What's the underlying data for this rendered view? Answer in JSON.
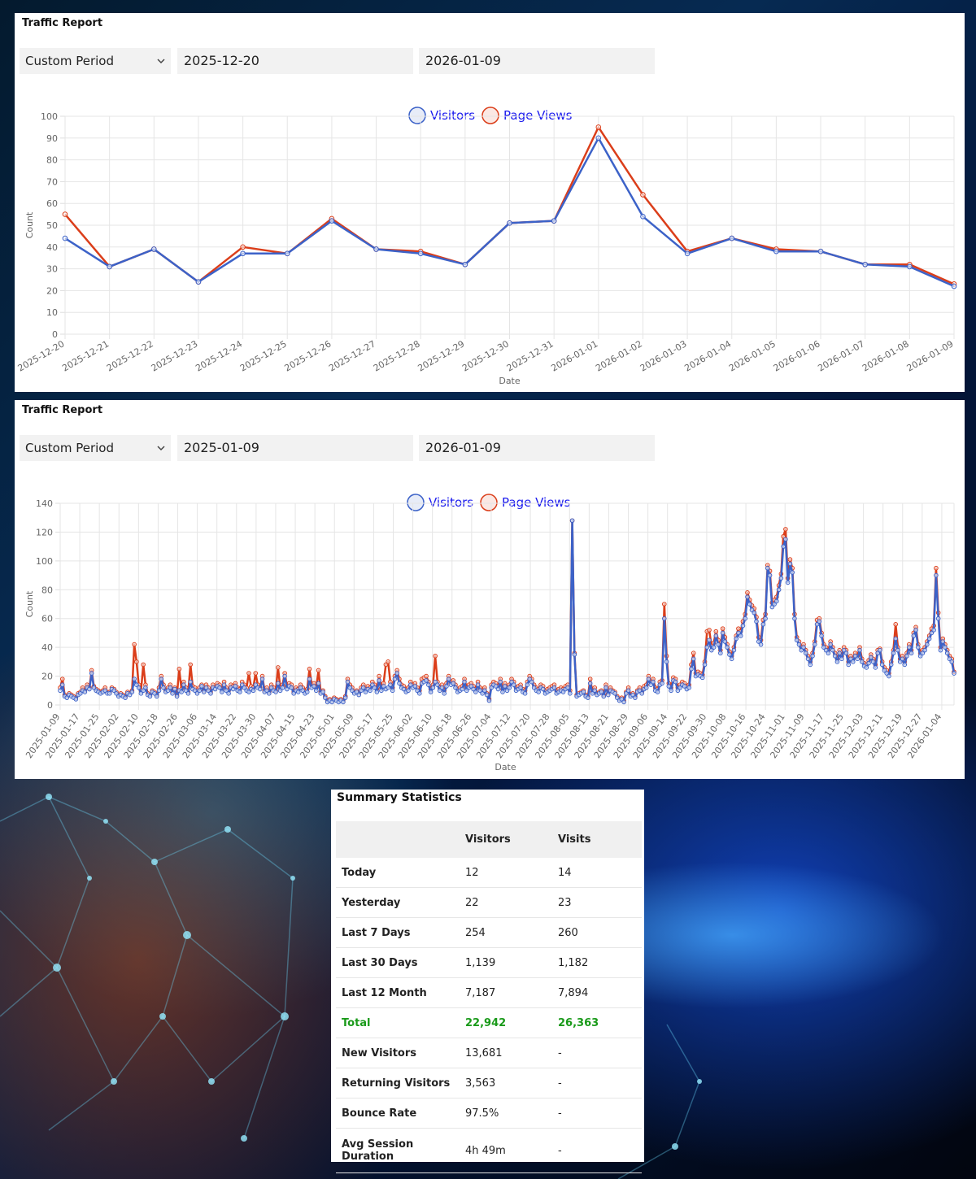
{
  "colors": {
    "visitors": "#3c62c8",
    "page_views": "#db3e1a",
    "legend_text": "#1a1aee",
    "total_row": "#1a9a1a"
  },
  "panels": [
    {
      "title": "Traffic Report",
      "period_select": "Custom Period",
      "start_date": "2025-12-20",
      "end_date": "2026-01-09"
    },
    {
      "title": "Traffic Report",
      "period_select": "Custom Period",
      "start_date": "2025-01-09",
      "end_date": "2026-01-09"
    }
  ],
  "chart_data": [
    {
      "type": "line",
      "xlabel": "Date",
      "ylabel": "Count",
      "ylim": [
        0,
        100
      ],
      "yticks": [
        0,
        10,
        20,
        30,
        40,
        50,
        60,
        70,
        80,
        90,
        100
      ],
      "grid": true,
      "legend_position": "top",
      "x": [
        "2025-12-20",
        "2025-12-21",
        "2025-12-22",
        "2025-12-23",
        "2025-12-24",
        "2025-12-25",
        "2025-12-26",
        "2025-12-27",
        "2025-12-28",
        "2025-12-29",
        "2025-12-30",
        "2025-12-31",
        "2026-01-01",
        "2026-01-02",
        "2026-01-03",
        "2026-01-04",
        "2026-01-05",
        "2026-01-06",
        "2026-01-07",
        "2026-01-08",
        "2026-01-09"
      ],
      "series": [
        {
          "name": "Visitors",
          "values": [
            44,
            31,
            39,
            24,
            37,
            37,
            52,
            39,
            37,
            32,
            51,
            52,
            90,
            54,
            37,
            44,
            38,
            38,
            32,
            31,
            22
          ]
        },
        {
          "name": "Page Views",
          "values": [
            55,
            31,
            39,
            24,
            40,
            37,
            53,
            39,
            38,
            32,
            51,
            52,
            95,
            64,
            38,
            44,
            39,
            38,
            32,
            32,
            23
          ]
        }
      ]
    },
    {
      "type": "line",
      "xlabel": "Date",
      "ylabel": "Count",
      "ylim": [
        0,
        140
      ],
      "yticks": [
        0,
        20,
        40,
        60,
        80,
        100,
        120,
        140
      ],
      "grid": true,
      "legend_position": "top",
      "x_start": "2025-01-09",
      "x_end": "2026-01-09",
      "xtick_labels": [
        "2025-01-09",
        "2025-01-17",
        "2025-01-25",
        "2025-02-02",
        "2025-02-10",
        "2025-02-18",
        "2025-02-26",
        "2025-03-06",
        "2025-03-14",
        "2025-03-22",
        "2025-03-30",
        "2025-04-07",
        "2025-04-15",
        "2025-04-23",
        "2025-05-01",
        "2025-05-09",
        "2025-05-17",
        "2025-05-25",
        "2025-06-02",
        "2025-06-10",
        "2025-06-18",
        "2025-06-26",
        "2025-07-04",
        "2025-07-12",
        "2025-07-20",
        "2025-07-28",
        "2025-08-05",
        "2025-08-13",
        "2025-08-21",
        "2025-08-29",
        "2025-09-06",
        "2025-09-14",
        "2025-09-22",
        "2025-09-30",
        "2025-10-08",
        "2025-10-16",
        "2025-10-24",
        "2025-11-01",
        "2025-11-09",
        "2025-11-17",
        "2025-11-25",
        "2025-12-03",
        "2025-12-11",
        "2025-12-19",
        "2025-12-27",
        "2026-01-04"
      ],
      "series": [
        {
          "name": "Visitors",
          "values": [
            10,
            14,
            6,
            5,
            7,
            6,
            5,
            4,
            7,
            8,
            10,
            9,
            12,
            11,
            22,
            12,
            10,
            9,
            8,
            9,
            10,
            8,
            8,
            11,
            10,
            8,
            6,
            7,
            6,
            5,
            8,
            7,
            9,
            18,
            14,
            12,
            8,
            10,
            12,
            7,
            6,
            9,
            8,
            6,
            10,
            18,
            12,
            9,
            10,
            12,
            8,
            11,
            6,
            10,
            9,
            14,
            10,
            8,
            16,
            11,
            10,
            8,
            10,
            13,
            9,
            12,
            10,
            8,
            12,
            11,
            13,
            12,
            9,
            14,
            10,
            8,
            12,
            11,
            13,
            10,
            9,
            14,
            12,
            10,
            9,
            11,
            10,
            14,
            12,
            11,
            18,
            9,
            10,
            8,
            12,
            10,
            9,
            15,
            10,
            12,
            20,
            11,
            13,
            12,
            8,
            10,
            9,
            12,
            10,
            8,
            9,
            18,
            12,
            13,
            10,
            15,
            8,
            9,
            5,
            2,
            3,
            2,
            4,
            3,
            2,
            3,
            2,
            5,
            16,
            12,
            10,
            8,
            9,
            7,
            10,
            12,
            9,
            11,
            10,
            14,
            12,
            9,
            17,
            10,
            13,
            11,
            12,
            14,
            10,
            18,
            22,
            15,
            12,
            11,
            9,
            10,
            14,
            12,
            13,
            10,
            8,
            15,
            16,
            17,
            14,
            9,
            12,
            16,
            14,
            10,
            12,
            8,
            13,
            18,
            14,
            15,
            12,
            9,
            10,
            11,
            16,
            10,
            12,
            13,
            11,
            9,
            14,
            10,
            8,
            10,
            7,
            3,
            12,
            14,
            13,
            11,
            16,
            9,
            13,
            10,
            12,
            16,
            14,
            10,
            11,
            12,
            9,
            8,
            14,
            18,
            16,
            12,
            10,
            9,
            12,
            11,
            8,
            9,
            10,
            11,
            12,
            8,
            9,
            10,
            9,
            11,
            12,
            8,
            128,
            35,
            6,
            7,
            8,
            9,
            6,
            5,
            15,
            8,
            10,
            7,
            8,
            9,
            6,
            12,
            7,
            10,
            9,
            8,
            5,
            3,
            4,
            2,
            8,
            10,
            6,
            7,
            5,
            9,
            10,
            8,
            11,
            12,
            18,
            14,
            16,
            10,
            9,
            14,
            15,
            60,
            30,
            13,
            10,
            17,
            16,
            10,
            12,
            14,
            13,
            11,
            12,
            25,
            32,
            20,
            21,
            20,
            19,
            28,
            40,
            45,
            38,
            40,
            48,
            42,
            36,
            50,
            44,
            40,
            35,
            32,
            38,
            46,
            50,
            48,
            55,
            60,
            75,
            70,
            66,
            64,
            58,
            44,
            42,
            56,
            60,
            95,
            90,
            68,
            70,
            72,
            80,
            88,
            110,
            115,
            85,
            98,
            92,
            60,
            45,
            42,
            38,
            40,
            36,
            32,
            28,
            34,
            42,
            56,
            58,
            48,
            40,
            38,
            36,
            42,
            38,
            34,
            30,
            36,
            32,
            38,
            36,
            28,
            32,
            30,
            34,
            32,
            38,
            30,
            27,
            26,
            29,
            33,
            30,
            26,
            36,
            38,
            28,
            24,
            22,
            20,
            28,
            36,
            46,
            38,
            30,
            32,
            28,
            34,
            40,
            36,
            48,
            52,
            40,
            34,
            36,
            38,
            42,
            46,
            50,
            52,
            90,
            60,
            38,
            44,
            40,
            36,
            32,
            30,
            22
          ]
        },
        {
          "name": "Page Views",
          "values": [
            12,
            18,
            7,
            6,
            8,
            7,
            6,
            5,
            8,
            9,
            12,
            10,
            14,
            12,
            24,
            13,
            11,
            10,
            9,
            10,
            12,
            9,
            9,
            12,
            11,
            9,
            7,
            8,
            7,
            6,
            9,
            8,
            10,
            42,
            30,
            14,
            10,
            28,
            14,
            8,
            7,
            10,
            9,
            7,
            12,
            20,
            14,
            10,
            12,
            14,
            9,
            12,
            7,
            25,
            11,
            16,
            12,
            9,
            28,
            13,
            12,
            9,
            12,
            14,
            10,
            14,
            12,
            9,
            14,
            12,
            15,
            14,
            11,
            16,
            12,
            10,
            14,
            13,
            15,
            12,
            11,
            16,
            14,
            12,
            22,
            13,
            12,
            22,
            14,
            12,
            20,
            10,
            12,
            9,
            14,
            12,
            10,
            26,
            12,
            14,
            22,
            13,
            15,
            14,
            9,
            12,
            11,
            14,
            12,
            10,
            11,
            25,
            14,
            15,
            12,
            24,
            9,
            10,
            6,
            3,
            4,
            3,
            5,
            4,
            3,
            4,
            3,
            6,
            18,
            14,
            12,
            9,
            10,
            8,
            12,
            14,
            11,
            13,
            12,
            16,
            14,
            11,
            20,
            12,
            15,
            28,
            30,
            16,
            12,
            20,
            24,
            18,
            14,
            13,
            11,
            12,
            16,
            14,
            15,
            12,
            10,
            18,
            19,
            20,
            16,
            11,
            14,
            34,
            16,
            12,
            14,
            10,
            15,
            20,
            16,
            17,
            14,
            11,
            12,
            13,
            18,
            12,
            14,
            15,
            13,
            11,
            16,
            12,
            10,
            12,
            8,
            4,
            14,
            16,
            15,
            13,
            18,
            11,
            15,
            12,
            14,
            18,
            16,
            12,
            13,
            14,
            11,
            10,
            16,
            20,
            18,
            14,
            12,
            11,
            14,
            13,
            10,
            11,
            12,
            13,
            14,
            10,
            11,
            12,
            11,
            13,
            14,
            10,
            128,
            36,
            7,
            8,
            9,
            10,
            7,
            6,
            18,
            9,
            12,
            8,
            9,
            10,
            7,
            14,
            8,
            12,
            10,
            9,
            6,
            4,
            5,
            3,
            9,
            12,
            7,
            8,
            6,
            10,
            12,
            9,
            13,
            14,
            20,
            16,
            18,
            12,
            11,
            16,
            17,
            70,
            34,
            15,
            12,
            19,
            18,
            12,
            14,
            16,
            15,
            13,
            14,
            28,
            36,
            22,
            23,
            22,
            21,
            30,
            51,
            52,
            41,
            43,
            51,
            45,
            38,
            53,
            47,
            42,
            37,
            34,
            40,
            48,
            53,
            51,
            58,
            63,
            78,
            73,
            69,
            67,
            61,
            47,
            45,
            59,
            63,
            97,
            93,
            71,
            73,
            75,
            83,
            91,
            117,
            122,
            88,
            101,
            95,
            63,
            47,
            44,
            40,
            42,
            38,
            34,
            30,
            36,
            44,
            59,
            60,
            50,
            42,
            40,
            38,
            44,
            40,
            36,
            32,
            38,
            34,
            40,
            38,
            30,
            34,
            32,
            36,
            34,
            40,
            32,
            29,
            28,
            31,
            35,
            32,
            28,
            38,
            39,
            30,
            26,
            24,
            22,
            30,
            38,
            56,
            40,
            32,
            34,
            30,
            36,
            42,
            38,
            50,
            54,
            42,
            36,
            38,
            40,
            44,
            48,
            53,
            55,
            95,
            64,
            40,
            46,
            42,
            38,
            34,
            32,
            23
          ]
        }
      ]
    }
  ],
  "summary": {
    "title": "Summary Statistics",
    "columns": [
      "",
      "Visitors",
      "Visits"
    ],
    "rows": [
      {
        "label": "Today",
        "visitors": "12",
        "visits": "14"
      },
      {
        "label": "Yesterday",
        "visitors": "22",
        "visits": "23"
      },
      {
        "label": "Last 7 Days",
        "visitors": "254",
        "visits": "260"
      },
      {
        "label": "Last 30 Days",
        "visitors": "1,139",
        "visits": "1,182"
      },
      {
        "label": "Last 12 Month",
        "visitors": "7,187",
        "visits": "7,894"
      },
      {
        "label": "Total",
        "visitors": "22,942",
        "visits": "26,363"
      },
      {
        "label": "New Visitors",
        "visitors": "13,681",
        "visits": "-"
      },
      {
        "label": "Returning Visitors",
        "visitors": "3,563",
        "visits": "-"
      },
      {
        "label": "Bounce Rate",
        "visitors": "97.5%",
        "visits": "-"
      },
      {
        "label": "Avg Session Duration",
        "visitors": "4h 49m",
        "visits": "-"
      }
    ]
  }
}
